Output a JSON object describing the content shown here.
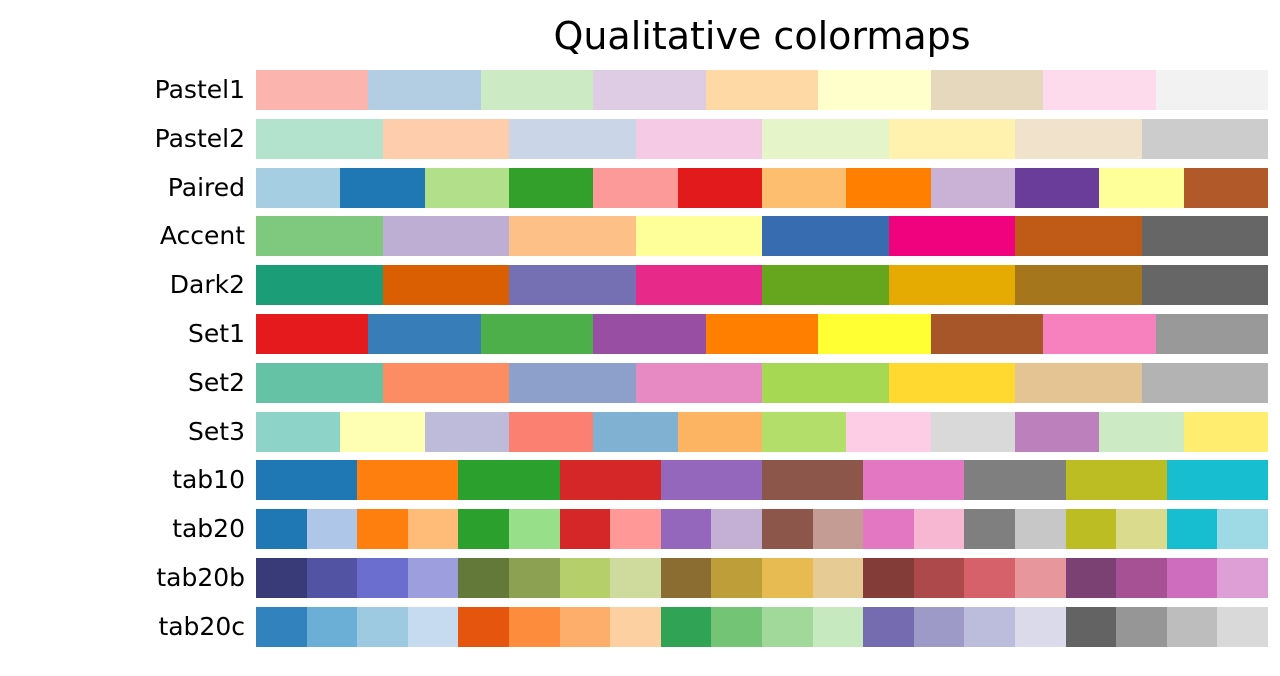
{
  "chart_data": {
    "type": "heatmap",
    "title": "Qualitative colormaps",
    "colormaps": [
      {
        "name": "Pastel1",
        "colors": [
          "#fbb4ae",
          "#b3cde3",
          "#ccebc5",
          "#decbe4",
          "#fed9a6",
          "#ffffcc",
          "#e5d8bd",
          "#fddaec",
          "#f2f2f2"
        ]
      },
      {
        "name": "Pastel2",
        "colors": [
          "#b3e2cd",
          "#fdcdac",
          "#cbd5e8",
          "#f4cae4",
          "#e6f5c9",
          "#fff2ae",
          "#f1e2cc",
          "#cccccc"
        ]
      },
      {
        "name": "Paired",
        "colors": [
          "#a6cee3",
          "#1f78b4",
          "#b2df8a",
          "#33a02c",
          "#fb9a99",
          "#e31a1c",
          "#fdbf6f",
          "#ff7f00",
          "#cab2d6",
          "#6a3d9a",
          "#ffff99",
          "#b15928"
        ]
      },
      {
        "name": "Accent",
        "colors": [
          "#7fc97f",
          "#beaed4",
          "#fdc086",
          "#ffff99",
          "#386cb0",
          "#f0027f",
          "#bf5b17",
          "#666666"
        ]
      },
      {
        "name": "Dark2",
        "colors": [
          "#1b9e77",
          "#d95f02",
          "#7570b3",
          "#e7298a",
          "#66a61e",
          "#e6ab02",
          "#a6761d",
          "#666666"
        ]
      },
      {
        "name": "Set1",
        "colors": [
          "#e41a1c",
          "#377eb8",
          "#4daf4a",
          "#984ea3",
          "#ff7f00",
          "#ffff33",
          "#a65628",
          "#f781bf",
          "#999999"
        ]
      },
      {
        "name": "Set2",
        "colors": [
          "#66c2a5",
          "#fc8d62",
          "#8da0cb",
          "#e78ac3",
          "#a6d854",
          "#ffd92f",
          "#e5c494",
          "#b3b3b3"
        ]
      },
      {
        "name": "Set3",
        "colors": [
          "#8dd3c7",
          "#ffffb3",
          "#bebada",
          "#fb8072",
          "#80b1d3",
          "#fdb462",
          "#b3de69",
          "#fccde5",
          "#d9d9d9",
          "#bc80bd",
          "#ccebc5",
          "#ffed6f"
        ]
      },
      {
        "name": "tab10",
        "colors": [
          "#1f77b4",
          "#ff7f0e",
          "#2ca02c",
          "#d62728",
          "#9467bd",
          "#8c564b",
          "#e377c2",
          "#7f7f7f",
          "#bcbd22",
          "#17becf"
        ]
      },
      {
        "name": "tab20",
        "colors": [
          "#1f77b4",
          "#aec7e8",
          "#ff7f0e",
          "#ffbb78",
          "#2ca02c",
          "#98df8a",
          "#d62728",
          "#ff9896",
          "#9467bd",
          "#c5b0d5",
          "#8c564b",
          "#c49c94",
          "#e377c2",
          "#f7b6d2",
          "#7f7f7f",
          "#c7c7c7",
          "#bcbd22",
          "#dbdb8d",
          "#17becf",
          "#9edae5"
        ]
      },
      {
        "name": "tab20b",
        "colors": [
          "#393b79",
          "#5254a3",
          "#6b6ecf",
          "#9c9ede",
          "#637939",
          "#8ca252",
          "#b5cf6b",
          "#cedb9c",
          "#8c6d31",
          "#bd9e39",
          "#e7ba52",
          "#e7cb94",
          "#843c39",
          "#ad494a",
          "#d6616b",
          "#e7969c",
          "#7b4173",
          "#a55194",
          "#ce6dbd",
          "#de9ed6"
        ]
      },
      {
        "name": "tab20c",
        "colors": [
          "#3182bd",
          "#6baed6",
          "#9ecae1",
          "#c6dbef",
          "#e6550d",
          "#fd8d3c",
          "#fdae6b",
          "#fdd0a2",
          "#31a354",
          "#74c476",
          "#a1d99b",
          "#c7e9c0",
          "#756bb1",
          "#9e9ac8",
          "#bcbddc",
          "#dadaeb",
          "#636363",
          "#969696",
          "#bdbdbd",
          "#d9d9d9"
        ]
      }
    ]
  }
}
